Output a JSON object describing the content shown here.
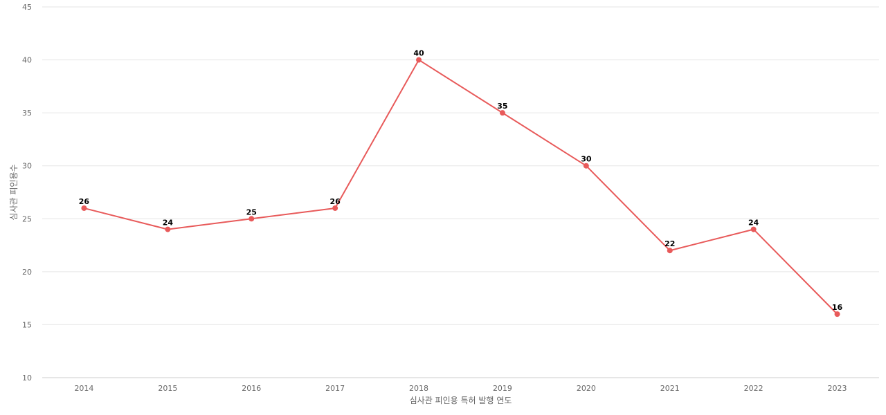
{
  "chart_data": {
    "type": "line",
    "title": "",
    "xlabel": "심사관 피인용 특허 발행 연도",
    "ylabel": "심사관 피인용수",
    "categories": [
      "2014",
      "2015",
      "2016",
      "2017",
      "2018",
      "2019",
      "2020",
      "2021",
      "2022",
      "2023"
    ],
    "series": [
      {
        "values": [
          26,
          24,
          25,
          26,
          40,
          35,
          30,
          22,
          24,
          16
        ],
        "color": "#e85a5a"
      }
    ],
    "ylim": [
      10,
      45
    ],
    "yticks": [
      10,
      15,
      20,
      25,
      30,
      35,
      40,
      45
    ],
    "grid": true,
    "legend": "none",
    "data_labels": true
  }
}
